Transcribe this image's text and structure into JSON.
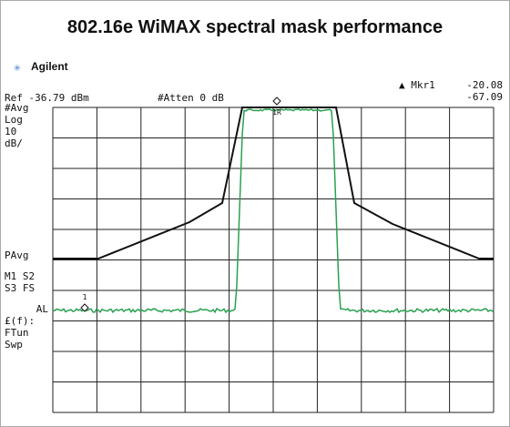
{
  "title": "802.16e WiMAX spectral mask performance",
  "brand": "Agilent",
  "marker_readout": {
    "label": "▲ Mkr1",
    "level": "-20.08",
    "second": "-67.09"
  },
  "ref": "Ref -36.79 dBm",
  "atten": "#Atten 0 dB",
  "side_labels": [
    "#Avg",
    "Log",
    "10",
    "dB/",
    "PAvg",
    "M1 S2",
    "S3 FS",
    "AL",
    "£(f):",
    "FTun",
    "Swp"
  ],
  "markers": [
    "1R",
    "1"
  ]
}
